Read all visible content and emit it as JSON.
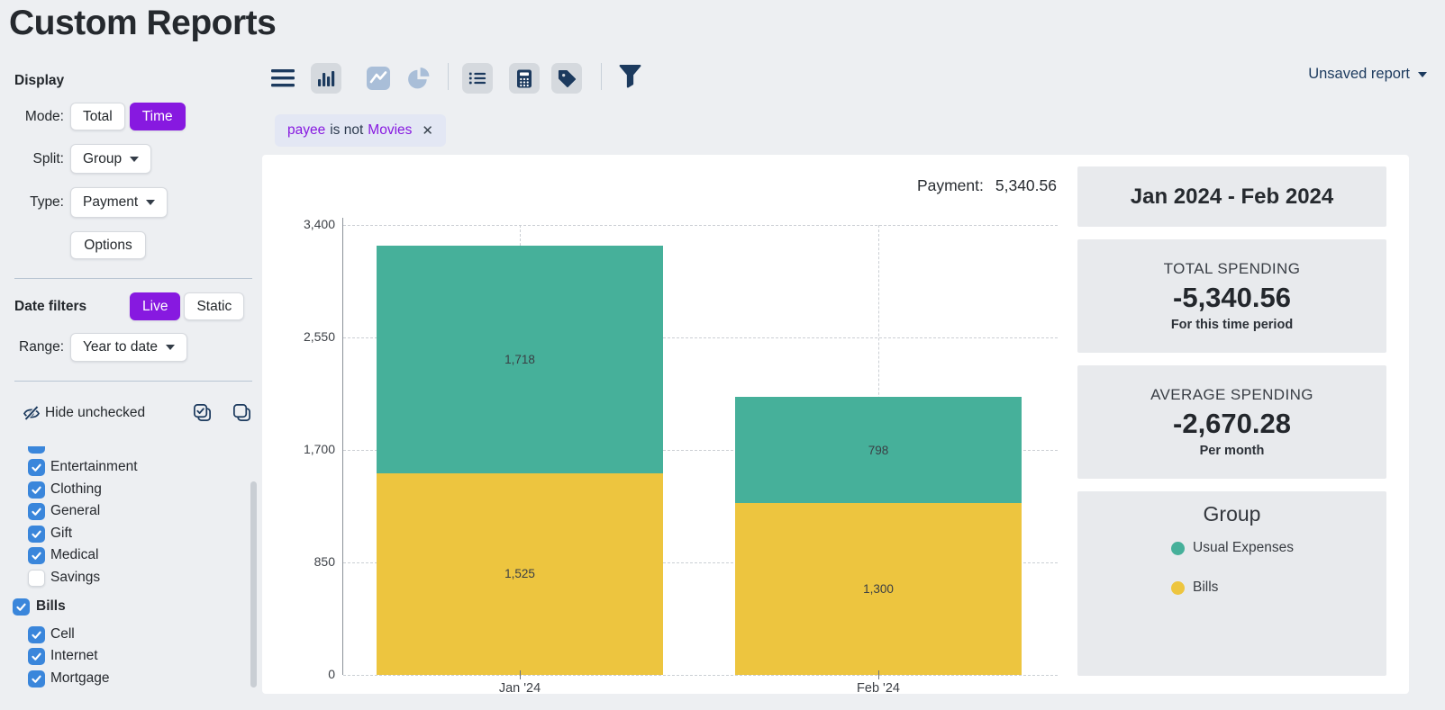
{
  "page": {
    "title": "Custom Reports"
  },
  "report_menu": {
    "label": "Unsaved report"
  },
  "toolbar": {
    "icons": [
      "menu",
      "bar-chart",
      "line-chart",
      "pie-chart",
      "list",
      "calculator",
      "tag",
      "filter"
    ],
    "active_chart_type": "bar-chart"
  },
  "filter_chip": {
    "field": "payee",
    "operator": "is not",
    "value": "Movies"
  },
  "display": {
    "label": "Display",
    "mode": {
      "label": "Mode:",
      "options": [
        "Total",
        "Time"
      ],
      "selected": "Time"
    },
    "split": {
      "label": "Split:",
      "value": "Group"
    },
    "type": {
      "label": "Type:",
      "value": "Payment"
    },
    "options_button": "Options"
  },
  "date_filters": {
    "label": "Date filters",
    "options": [
      "Live",
      "Static"
    ],
    "selected": "Live",
    "range": {
      "label": "Range:",
      "value": "Year to date"
    }
  },
  "category_filter": {
    "hide_unchecked_label": "Hide unchecked",
    "items": [
      {
        "label": "Entertainment",
        "checked": true,
        "group": false
      },
      {
        "label": "Clothing",
        "checked": true,
        "group": false
      },
      {
        "label": "General",
        "checked": true,
        "group": false
      },
      {
        "label": "Gift",
        "checked": true,
        "group": false
      },
      {
        "label": "Medical",
        "checked": true,
        "group": false
      },
      {
        "label": "Savings",
        "checked": false,
        "group": false
      },
      {
        "label": "Bills",
        "checked": true,
        "group": true
      },
      {
        "label": "Cell",
        "checked": true,
        "group": false
      },
      {
        "label": "Internet",
        "checked": true,
        "group": false
      },
      {
        "label": "Mortgage",
        "checked": true,
        "group": false
      }
    ]
  },
  "chart_header": {
    "label": "Payment:",
    "value": "5,340.56"
  },
  "chart_data": {
    "type": "bar",
    "stacked": true,
    "categories": [
      "Jan '24",
      "Feb '24"
    ],
    "series": [
      {
        "name": "Usual Expenses",
        "color": "#46b09a",
        "values": [
          1718,
          798
        ]
      },
      {
        "name": "Bills",
        "color": "#edc53f",
        "values": [
          1525,
          1300
        ]
      }
    ],
    "title": "Payment: 5,340.56",
    "xlabel": "",
    "ylabel": "",
    "ylim": [
      0,
      3400
    ],
    "yticks": [
      0,
      850,
      1700,
      2550,
      3400
    ],
    "grid": "dashed",
    "legend_position": "right-panel",
    "totals": [
      3243,
      2098
    ]
  },
  "summary": {
    "date_range": "Jan 2024 - Feb 2024",
    "cards": [
      {
        "title": "TOTAL SPENDING",
        "value": "-5,340.56",
        "caption": "For this time period"
      },
      {
        "title": "AVERAGE SPENDING",
        "value": "-2,670.28",
        "caption": "Per month"
      }
    ],
    "legend": {
      "title": "Group",
      "entries": [
        {
          "label": "Usual Expenses",
          "color": "#46b09a"
        },
        {
          "label": "Bills",
          "color": "#edc53f"
        }
      ]
    }
  },
  "colors": {
    "accent_purple": "#8719e0",
    "checkbox_blue": "#3a86db",
    "series_teal": "#46b09a",
    "series_yellow": "#edc53f",
    "navy": "#1c3a5e",
    "card_gray": "#e8eaed"
  }
}
